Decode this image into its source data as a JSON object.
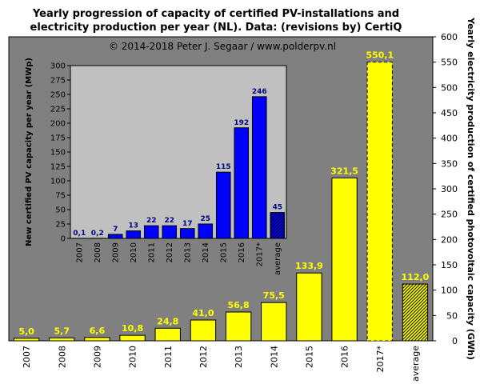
{
  "colors": {
    "plot_bg": "#808080",
    "inset_bg": "#c0c0c0",
    "main_bar": "#ffff00",
    "inset_bar": "#0000ff",
    "main_label": "#ffff00",
    "inset_label": "#000080"
  },
  "header": {
    "title_line1": "Yearly progression of capacity of certified PV-installations and",
    "title_line2": "electricity production per year (NL). Data: (revisions by) CertiQ",
    "copyright": "© 2014-2018 Peter J. Segaar / www.polderpv.nl"
  },
  "chart_data": [
    {
      "type": "bar",
      "title": "Yearly progression of capacity of certified PV-installations and electricity production per year (NL). Data: (revisions by) CertiQ",
      "ylabel": "Yearly electricity production of certified photovoltaic capacity (GWh)",
      "ylim": [
        0,
        600
      ],
      "yticks": [
        0,
        50,
        100,
        150,
        200,
        250,
        300,
        350,
        400,
        450,
        500,
        550,
        600
      ],
      "yaxis_side": "right",
      "categories": [
        "2007",
        "2008",
        "2009",
        "2010",
        "2011",
        "2012",
        "2013",
        "2014",
        "2015",
        "2016",
        "2017*",
        "average"
      ],
      "values": [
        5.0,
        5.7,
        6.6,
        10.8,
        24.8,
        41.0,
        56.8,
        75.5,
        133.9,
        321.5,
        550.1,
        112.0
      ],
      "labels": [
        "5,0",
        "5,7",
        "6,6",
        "10,8",
        "24,8",
        "41,0",
        "56,8",
        "75,5",
        "133,9",
        "321,5",
        "550,1",
        "112,0"
      ],
      "dashed_categories": [
        "2017*"
      ],
      "hatched_categories": [
        "average"
      ],
      "grid": false
    },
    {
      "type": "bar",
      "ylabel": "New certified PV capacity per year (MWp)",
      "ylim": [
        0,
        300
      ],
      "yticks": [
        0,
        25,
        50,
        75,
        100,
        125,
        150,
        175,
        200,
        225,
        250,
        275,
        300
      ],
      "categories": [
        "2007",
        "2008",
        "2009",
        "2010",
        "2011",
        "2012",
        "2013",
        "2014",
        "2015",
        "2016",
        "2017*",
        "average"
      ],
      "values": [
        0.1,
        0.2,
        7,
        13,
        22,
        22,
        17,
        25,
        115,
        192,
        246,
        45
      ],
      "labels": [
        "0,1",
        "0,2",
        "7",
        "13",
        "22",
        "22",
        "17",
        "25",
        "115",
        "192",
        "246",
        "45"
      ],
      "hatched_categories": [
        "average"
      ],
      "grid": false
    }
  ]
}
